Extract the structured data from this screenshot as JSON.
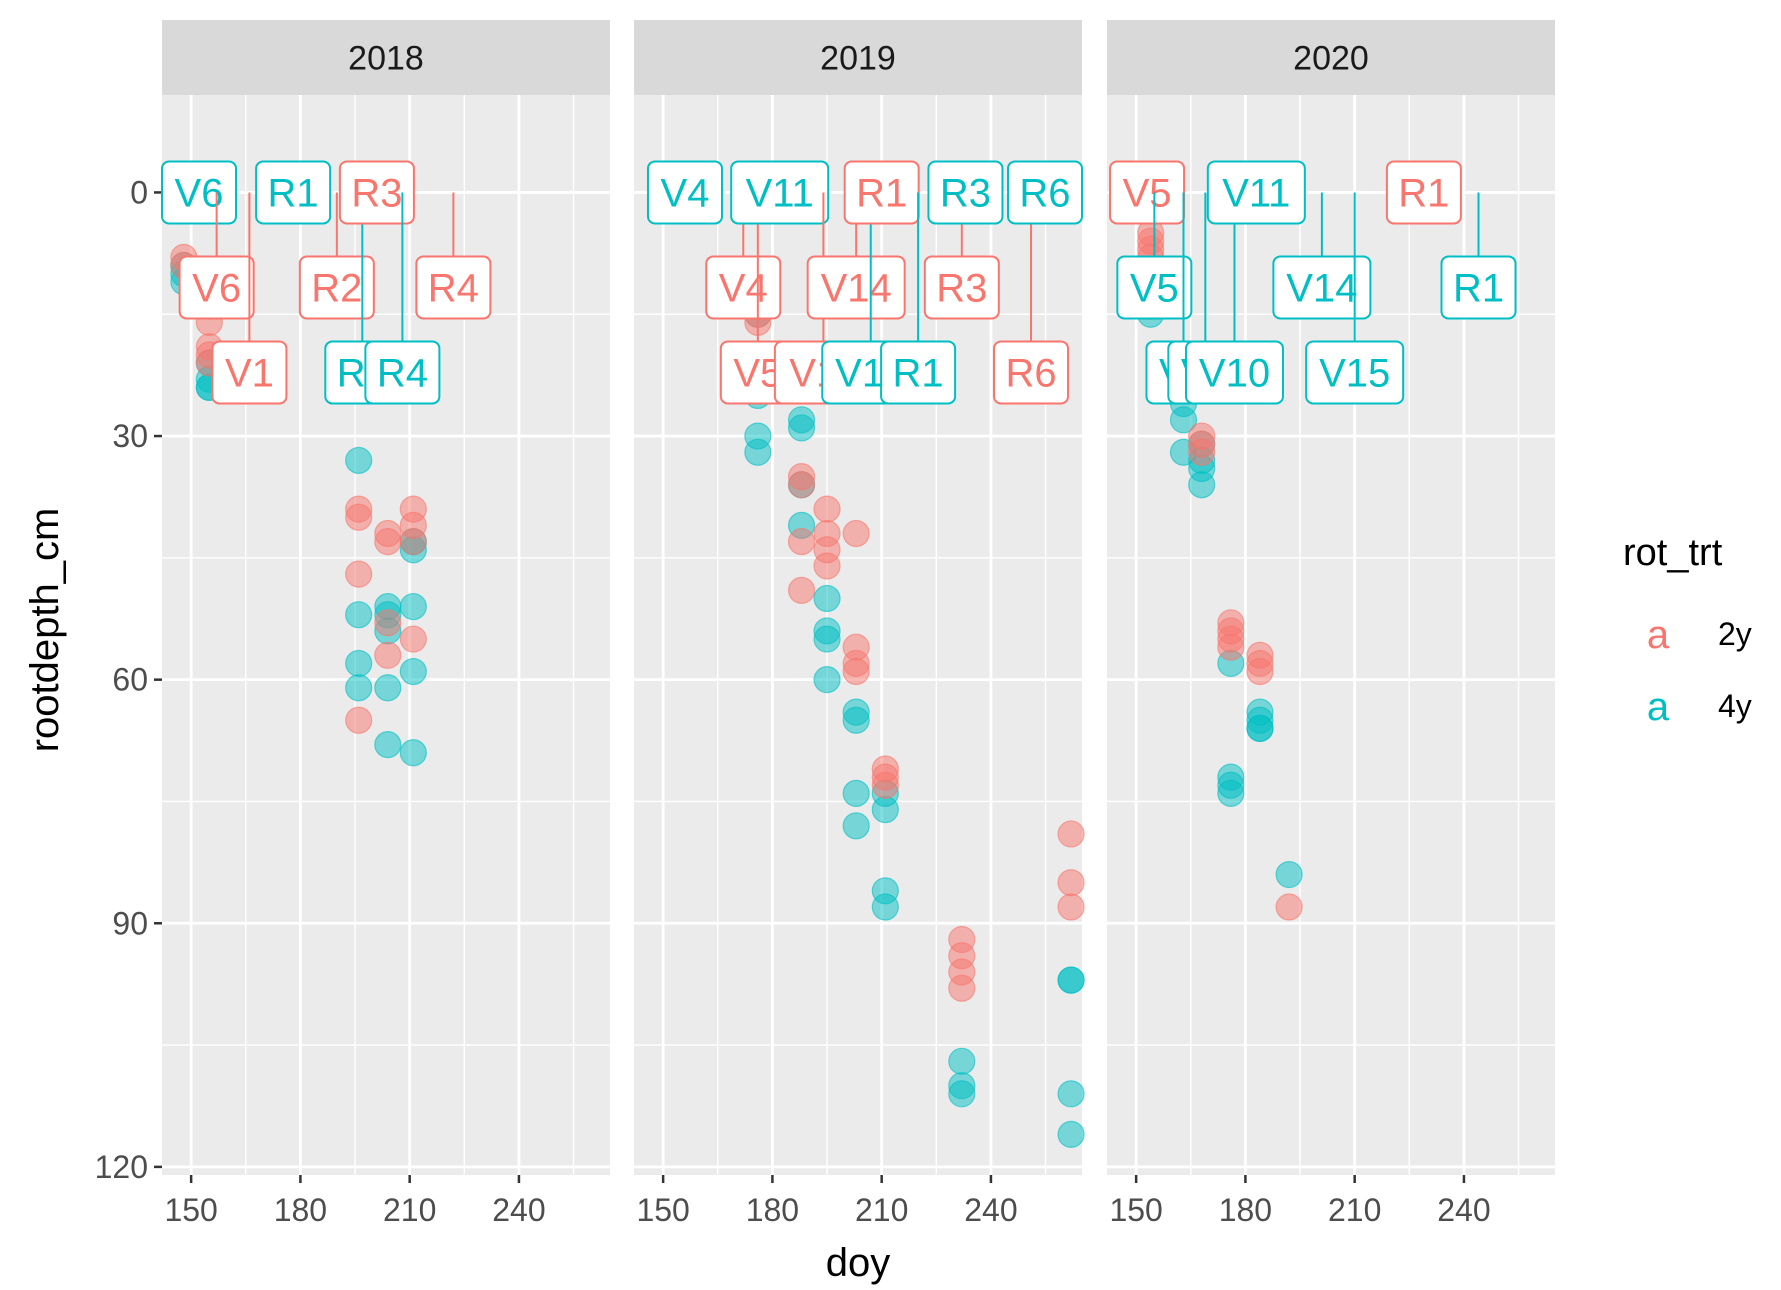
{
  "chart_data": {
    "type": "scatter",
    "facet_variable": "year",
    "facets": [
      {
        "title": "2018",
        "points": {
          "2y": [
            [
              148,
              8
            ],
            [
              148,
              9
            ],
            [
              155,
              14
            ],
            [
              155,
              16
            ],
            [
              155,
              19
            ],
            [
              155,
              20
            ],
            [
              155,
              21
            ],
            [
              196,
              39
            ],
            [
              196,
              40
            ],
            [
              196,
              47
            ],
            [
              196,
              65
            ],
            [
              204,
              42
            ],
            [
              204,
              43
            ],
            [
              204,
              53
            ],
            [
              204,
              57
            ],
            [
              211,
              39
            ],
            [
              211,
              41
            ],
            [
              211,
              43
            ],
            [
              211,
              55
            ]
          ],
          "4y": [
            [
              148,
              9
            ],
            [
              148,
              10
            ],
            [
              148,
              11
            ],
            [
              155,
              21
            ],
            [
              155,
              23
            ],
            [
              155,
              24
            ],
            [
              155,
              24
            ],
            [
              196,
              33
            ],
            [
              196,
              52
            ],
            [
              196,
              58
            ],
            [
              196,
              61
            ],
            [
              204,
              51
            ],
            [
              204,
              52
            ],
            [
              204,
              54
            ],
            [
              204,
              61
            ],
            [
              204,
              68
            ],
            [
              211,
              43
            ],
            [
              211,
              44
            ],
            [
              211,
              51
            ],
            [
              211,
              59
            ],
            [
              211,
              69
            ]
          ]
        },
        "labels": [
          {
            "text": "V6",
            "rot": "2y",
            "doy": 157,
            "depth": 0
          },
          {
            "text": "V6",
            "rot": "4y",
            "doy": 150,
            "depth": 0
          },
          {
            "text": "V1",
            "rot": "2y",
            "doy": 166,
            "depth": 0
          },
          {
            "text": "R1",
            "rot": "4y",
            "doy": 178,
            "depth": 0
          },
          {
            "text": "R2",
            "rot": "2y",
            "doy": 190,
            "depth": 0
          },
          {
            "text": "R3",
            "rot": "4y",
            "doy": 197,
            "depth": 0
          },
          {
            "text": "R3",
            "rot": "2y",
            "doy": 201,
            "depth": 0
          },
          {
            "text": "R4",
            "rot": "4y",
            "doy": 208,
            "depth": 0
          },
          {
            "text": "R4",
            "rot": "2y",
            "doy": 222,
            "depth": 0
          }
        ]
      },
      {
        "title": "2019",
        "points": {
          "2y": [
            [
              176,
              15
            ],
            [
              176,
              16
            ],
            [
              176,
              22
            ],
            [
              188,
              35
            ],
            [
              188,
              36
            ],
            [
              188,
              43
            ],
            [
              188,
              49
            ],
            [
              195,
              39
            ],
            [
              195,
              42
            ],
            [
              195,
              44
            ],
            [
              195,
              46
            ],
            [
              203,
              42
            ],
            [
              203,
              56
            ],
            [
              203,
              58
            ],
            [
              203,
              59
            ],
            [
              211,
              71
            ],
            [
              211,
              72
            ],
            [
              211,
              73
            ],
            [
              232,
              92
            ],
            [
              232,
              94
            ],
            [
              232,
              96
            ],
            [
              232,
              98
            ],
            [
              262,
              79
            ],
            [
              262,
              85
            ],
            [
              262,
              88
            ]
          ],
          "4y": [
            [
              176,
              15
            ],
            [
              176,
              25
            ],
            [
              176,
              30
            ],
            [
              176,
              32
            ],
            [
              188,
              28
            ],
            [
              188,
              29
            ],
            [
              188,
              36
            ],
            [
              188,
              41
            ],
            [
              195,
              50
            ],
            [
              195,
              54
            ],
            [
              195,
              55
            ],
            [
              195,
              60
            ],
            [
              203,
              64
            ],
            [
              203,
              65
            ],
            [
              203,
              74
            ],
            [
              203,
              78
            ],
            [
              211,
              74
            ],
            [
              211,
              76
            ],
            [
              211,
              86
            ],
            [
              211,
              88
            ],
            [
              232,
              107
            ],
            [
              232,
              110
            ],
            [
              232,
              111
            ],
            [
              262,
              97
            ],
            [
              262,
              97
            ],
            [
              262,
              111
            ],
            [
              262,
              116
            ]
          ]
        },
        "labels": [
          {
            "text": "V4",
            "rot": "4y",
            "doy": 156,
            "depth": 0
          },
          {
            "text": "V4",
            "rot": "2y",
            "doy": 172,
            "depth": 0
          },
          {
            "text": "V5",
            "rot": "2y",
            "doy": 176,
            "depth": 0
          },
          {
            "text": "V11",
            "rot": "4y",
            "doy": 182,
            "depth": 0
          },
          {
            "text": "V11",
            "rot": "2y",
            "doy": 194,
            "depth": 0
          },
          {
            "text": "V14",
            "rot": "2y",
            "doy": 203,
            "depth": 0
          },
          {
            "text": "V14",
            "rot": "4y",
            "doy": 207,
            "depth": 0
          },
          {
            "text": "R1",
            "rot": "2y",
            "doy": 210,
            "depth": 0
          },
          {
            "text": "R1",
            "rot": "4y",
            "doy": 220,
            "depth": 0
          },
          {
            "text": "R3",
            "rot": "2y",
            "doy": 232,
            "depth": 0
          },
          {
            "text": "R3",
            "rot": "4y",
            "doy": 233,
            "depth": 0
          },
          {
            "text": "R6",
            "rot": "4y",
            "doy": 264,
            "depth": 0
          },
          {
            "text": "R6",
            "rot": "2y",
            "doy": 251,
            "depth": 0
          }
        ]
      },
      {
        "title": "2020",
        "points": {
          "2y": [
            [
              154,
              5
            ],
            [
              154,
              6
            ],
            [
              154,
              7
            ],
            [
              154,
              8
            ],
            [
              168,
              30
            ],
            [
              168,
              31
            ],
            [
              168,
              32
            ],
            [
              176,
              53
            ],
            [
              176,
              54
            ],
            [
              176,
              55
            ],
            [
              176,
              56
            ],
            [
              184,
              57
            ],
            [
              184,
              58
            ],
            [
              184,
              59
            ],
            [
              192,
              88
            ]
          ],
          "4y": [
            [
              154,
              14
            ],
            [
              154,
              15
            ],
            [
              163,
              26
            ],
            [
              163,
              28
            ],
            [
              163,
              32
            ],
            [
              168,
              31
            ],
            [
              168,
              33
            ],
            [
              168,
              34
            ],
            [
              168,
              36
            ],
            [
              176,
              58
            ],
            [
              176,
              72
            ],
            [
              176,
              73
            ],
            [
              176,
              74
            ],
            [
              184,
              64
            ],
            [
              184,
              65
            ],
            [
              184,
              66
            ],
            [
              184,
              66
            ],
            [
              192,
              84
            ]
          ]
        },
        "labels": [
          {
            "text": "V5",
            "rot": "2y",
            "doy": 153,
            "depth": 0
          },
          {
            "text": "V5",
            "rot": "4y",
            "doy": 155,
            "depth": 0
          },
          {
            "text": "V7",
            "rot": "4y",
            "doy": 163,
            "depth": 0
          },
          {
            "text": "V8",
            "rot": "4y",
            "doy": 169,
            "depth": 0
          },
          {
            "text": "V10",
            "rot": "4y",
            "doy": 177,
            "depth": 0
          },
          {
            "text": "V11",
            "rot": "4y",
            "doy": 183,
            "depth": 0
          },
          {
            "text": "V14",
            "rot": "4y",
            "doy": 201,
            "depth": 0
          },
          {
            "text": "V15",
            "rot": "4y",
            "doy": 210,
            "depth": 0
          },
          {
            "text": "R1",
            "rot": "2y",
            "doy": 229,
            "depth": 0
          },
          {
            "text": "R1",
            "rot": "4y",
            "doy": 244,
            "depth": 0
          }
        ]
      }
    ],
    "xlabel": "doy",
    "ylabel": "rootdepth_cm",
    "xlim": [
      142,
      265
    ],
    "ylim": [
      121,
      -12
    ],
    "y_reversed": true,
    "xticks": [
      150,
      180,
      210,
      240
    ],
    "yticks": [
      0,
      30,
      60,
      90,
      120
    ],
    "legend": {
      "title": "rot_trt",
      "position": "right",
      "key_glyph": "a",
      "entries": [
        {
          "label": "2y",
          "color": "#F8766D"
        },
        {
          "label": "4y",
          "color": "#00BFC4"
        }
      ]
    },
    "grid": true,
    "panel_background": "#EBEBEB",
    "strip_background": "#D9D9D9"
  }
}
